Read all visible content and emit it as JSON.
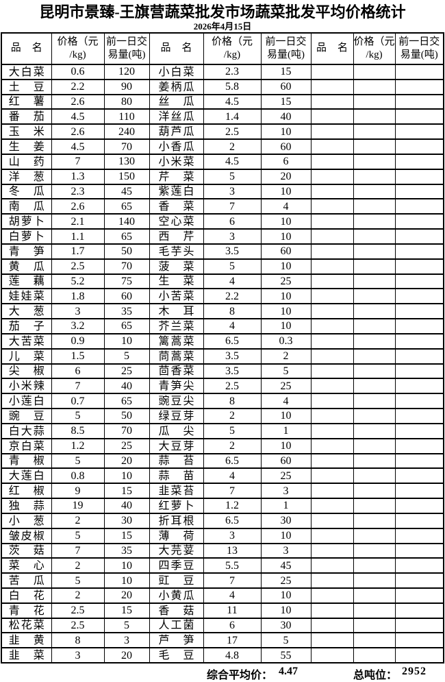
{
  "title": "昆明市景臻-王旗营蔬菜批发市场蔬菜批发平均价格统计",
  "date": "2026年4月15日",
  "header": {
    "name": "品名",
    "price_line1": "价格（元",
    "price_line2": "/kg)",
    "volume_line1": "前一日交",
    "volume_line2": "易量(吨)"
  },
  "table": {
    "left": [
      {
        "name": "大白菜",
        "price": "0.6",
        "volume": "120"
      },
      {
        "name": "土豆",
        "price": "2.2",
        "volume": "90"
      },
      {
        "name": "红薯",
        "price": "2.6",
        "volume": "80"
      },
      {
        "name": "番茄",
        "price": "4.5",
        "volume": "110"
      },
      {
        "name": "玉米",
        "price": "2.6",
        "volume": "240"
      },
      {
        "name": "生姜",
        "price": "4.5",
        "volume": "70"
      },
      {
        "name": "山药",
        "price": "7",
        "volume": "130"
      },
      {
        "name": "洋葱",
        "price": "1.3",
        "volume": "150"
      },
      {
        "name": "冬瓜",
        "price": "2.3",
        "volume": "45"
      },
      {
        "name": "南瓜",
        "price": "2.6",
        "volume": "65"
      },
      {
        "name": "胡萝卜",
        "price": "2.1",
        "volume": "140"
      },
      {
        "name": "白萝卜",
        "price": "1.1",
        "volume": "65"
      },
      {
        "name": "青笋",
        "price": "1.7",
        "volume": "50"
      },
      {
        "name": "黄瓜",
        "price": "2.5",
        "volume": "70"
      },
      {
        "name": "莲藕",
        "price": "5.2",
        "volume": "75"
      },
      {
        "name": "娃娃菜",
        "price": "1.8",
        "volume": "60"
      },
      {
        "name": "大葱",
        "price": "3",
        "volume": "35"
      },
      {
        "name": "茄子",
        "price": "3.2",
        "volume": "65"
      },
      {
        "name": "大苦菜",
        "price": "0.9",
        "volume": "10"
      },
      {
        "name": "儿菜",
        "price": "1.5",
        "volume": "5"
      },
      {
        "name": "尖椒",
        "price": "6",
        "volume": "25"
      },
      {
        "name": "小米辣",
        "price": "7",
        "volume": "40"
      },
      {
        "name": "小莲白",
        "price": "0.7",
        "volume": "65"
      },
      {
        "name": "豌豆",
        "price": "5",
        "volume": "50"
      },
      {
        "name": "白大蒜",
        "price": "8.5",
        "volume": "70"
      },
      {
        "name": "京白菜",
        "price": "1.2",
        "volume": "25"
      },
      {
        "name": "青椒",
        "price": "5",
        "volume": "20"
      },
      {
        "name": "大莲白",
        "price": "0.8",
        "volume": "10"
      },
      {
        "name": "红椒",
        "price": "9",
        "volume": "15"
      },
      {
        "name": "独蒜",
        "price": "19",
        "volume": "40"
      },
      {
        "name": "小葱",
        "price": "2",
        "volume": "30"
      },
      {
        "name": "皱皮椒",
        "price": "5",
        "volume": "15"
      },
      {
        "name": "茨菇",
        "price": "7",
        "volume": "35"
      },
      {
        "name": "菜心",
        "price": "2",
        "volume": "10"
      },
      {
        "name": "苦瓜",
        "price": "5",
        "volume": "10"
      },
      {
        "name": "白花",
        "price": "2",
        "volume": "20"
      },
      {
        "name": "青花",
        "price": "2.5",
        "volume": "15"
      },
      {
        "name": "松花菜",
        "price": "2.5",
        "volume": "5"
      },
      {
        "name": "韭黄",
        "price": "8",
        "volume": "3"
      },
      {
        "name": "韭菜",
        "price": "3",
        "volume": "20"
      }
    ],
    "middle": [
      {
        "name": "小白菜",
        "price": "2.3",
        "volume": "15"
      },
      {
        "name": "姜柄瓜",
        "price": "5.8",
        "volume": "60"
      },
      {
        "name": "丝瓜",
        "price": "4.5",
        "volume": "15"
      },
      {
        "name": "洋丝瓜",
        "price": "1.4",
        "volume": "40"
      },
      {
        "name": "葫芦瓜",
        "price": "2.5",
        "volume": "10"
      },
      {
        "name": "小香瓜",
        "price": "2",
        "volume": "60"
      },
      {
        "name": "小米菜",
        "price": "4.5",
        "volume": "6"
      },
      {
        "name": "芹菜",
        "price": "5",
        "volume": "20"
      },
      {
        "name": "紫莲白",
        "price": "3",
        "volume": "10"
      },
      {
        "name": "香菜",
        "price": "7",
        "volume": "4"
      },
      {
        "name": "空心菜",
        "price": "6",
        "volume": "10"
      },
      {
        "name": "西芹",
        "price": "3",
        "volume": "10"
      },
      {
        "name": "毛芋头",
        "price": "3.5",
        "volume": "60"
      },
      {
        "name": "菠菜",
        "price": "5",
        "volume": "10"
      },
      {
        "name": "生菜",
        "price": "4",
        "volume": "25"
      },
      {
        "name": "小苦菜",
        "price": "2.2",
        "volume": "10"
      },
      {
        "name": "木耳",
        "price": "8",
        "volume": "10"
      },
      {
        "name": "芥兰菜",
        "price": "4",
        "volume": "10"
      },
      {
        "name": "篱蒿菜",
        "price": "6.5",
        "volume": "0.3"
      },
      {
        "name": "茼蒿菜",
        "price": "3.5",
        "volume": "2"
      },
      {
        "name": "茴香菜",
        "price": "3.5",
        "volume": "5"
      },
      {
        "name": "青笋尖",
        "price": "2.5",
        "volume": "25"
      },
      {
        "name": "豌豆尖",
        "price": "8",
        "volume": "4"
      },
      {
        "name": "绿豆芽",
        "price": "2",
        "volume": "10"
      },
      {
        "name": "瓜尖",
        "price": "5",
        "volume": "1"
      },
      {
        "name": "大豆芽",
        "price": "2",
        "volume": "10"
      },
      {
        "name": "蒜苔",
        "price": "6.5",
        "volume": "60"
      },
      {
        "name": "蒜苗",
        "price": "4",
        "volume": "25"
      },
      {
        "name": "韭菜苔",
        "price": "7",
        "volume": "3"
      },
      {
        "name": "红萝卜",
        "price": "1.2",
        "volume": "1"
      },
      {
        "name": "折耳根",
        "price": "6.5",
        "volume": "30"
      },
      {
        "name": "薄荷",
        "price": "3",
        "volume": "10"
      },
      {
        "name": "大芫荽",
        "price": "13",
        "volume": "3"
      },
      {
        "name": "四季豆",
        "price": "5.5",
        "volume": "45"
      },
      {
        "name": "豇豆",
        "price": "7",
        "volume": "25"
      },
      {
        "name": "小黄瓜",
        "price": "4",
        "volume": "10"
      },
      {
        "name": "香菇",
        "price": "11",
        "volume": "10"
      },
      {
        "name": "人工菌",
        "price": "6",
        "volume": "30"
      },
      {
        "name": "芦笋",
        "price": "17",
        "volume": "5"
      },
      {
        "name": "毛豆",
        "price": "4.8",
        "volume": "55"
      }
    ],
    "right": []
  },
  "footer": {
    "avg_label": "综合平均价：",
    "avg_value": "4.47",
    "tonnage_label": "总吨位：",
    "tonnage_value": "2952"
  }
}
